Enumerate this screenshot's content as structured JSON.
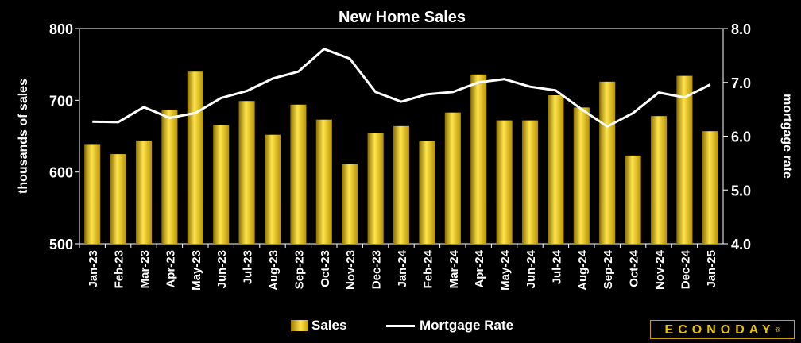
{
  "chart_data": {
    "type": "bar",
    "title": "New Home Sales",
    "categories": [
      "Jan-23",
      "Feb-23",
      "Mar-23",
      "Apr-23",
      "May-23",
      "Jun-23",
      "Jul-23",
      "Aug-23",
      "Sep-23",
      "Oct-23",
      "Nov-23",
      "Dec-23",
      "Jan-24",
      "Feb-24",
      "Mar-24",
      "Apr-24",
      "May-24",
      "Jun-24",
      "Jul-24",
      "Aug-24",
      "Sep-24",
      "Oct-24",
      "Nov-24",
      "Dec-24",
      "Jan-25"
    ],
    "series": [
      {
        "name": "Sales",
        "type": "bar",
        "axis": "left",
        "values": [
          639,
          625,
          644,
          687,
          740,
          666,
          699,
          652,
          694,
          673,
          611,
          654,
          664,
          643,
          683,
          736,
          672,
          672,
          707,
          690,
          726,
          623,
          678,
          734,
          657
        ]
      },
      {
        "name": "Mortgage Rate",
        "type": "line",
        "axis": "right",
        "values": [
          6.27,
          6.26,
          6.54,
          6.34,
          6.43,
          6.71,
          6.84,
          7.07,
          7.2,
          7.62,
          7.44,
          6.82,
          6.64,
          6.78,
          6.82,
          7.0,
          7.06,
          6.92,
          6.85,
          6.5,
          6.18,
          6.43,
          6.81,
          6.72,
          6.96
        ]
      }
    ],
    "ylabel": "thousands of sales",
    "ylim": [
      500,
      800
    ],
    "yticks": [
      "500",
      "600",
      "700",
      "800"
    ],
    "y2label": "mortgage rate",
    "y2lim": [
      4.0,
      8.0
    ],
    "y2ticks": [
      "4.0",
      "5.0",
      "6.0",
      "7.0",
      "8.0"
    ],
    "legend_position": "bottom",
    "grid": false
  },
  "colors": {
    "background": "#000000",
    "bar": "#e8c300",
    "line": "#ffffff"
  },
  "legend": {
    "sales_label": "Sales",
    "rate_label": "Mortgage Rate"
  },
  "brand": {
    "name": "ECONODAY",
    "mark": "®"
  }
}
